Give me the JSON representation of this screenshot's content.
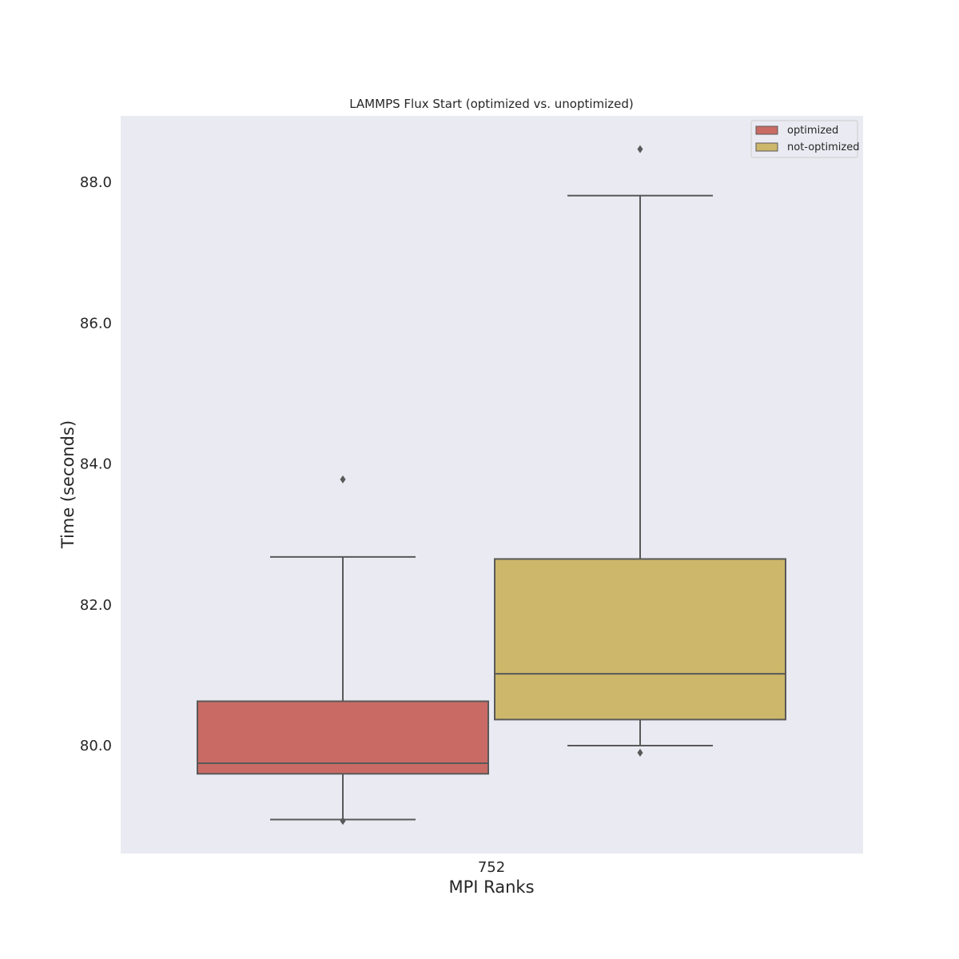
{
  "chart_data": {
    "type": "box",
    "title": "LAMMPS Flux Start (optimized vs. unoptimized)",
    "xlabel": "MPI Ranks",
    "ylabel": "Time (seconds)",
    "categories": [
      "752"
    ],
    "ylim": [
      78.5,
      89.0
    ],
    "yticks": [
      "80.0",
      "82.0",
      "84.0",
      "86.0",
      "88.0"
    ],
    "legend_position": "top-right",
    "grid": false,
    "series": [
      {
        "name": "optimized",
        "color": "#c96b64",
        "whisker_low": 78.95,
        "q1": 79.6,
        "median": 79.75,
        "q3": 80.63,
        "whisker_high": 82.68,
        "outliers": [
          78.93,
          83.78
        ]
      },
      {
        "name": "not-optimized",
        "color": "#ccb76a",
        "whisker_low": 80.0,
        "q1": 80.37,
        "median": 81.02,
        "q3": 82.65,
        "whisker_high": 87.81,
        "outliers": [
          79.9,
          88.47
        ]
      }
    ]
  }
}
